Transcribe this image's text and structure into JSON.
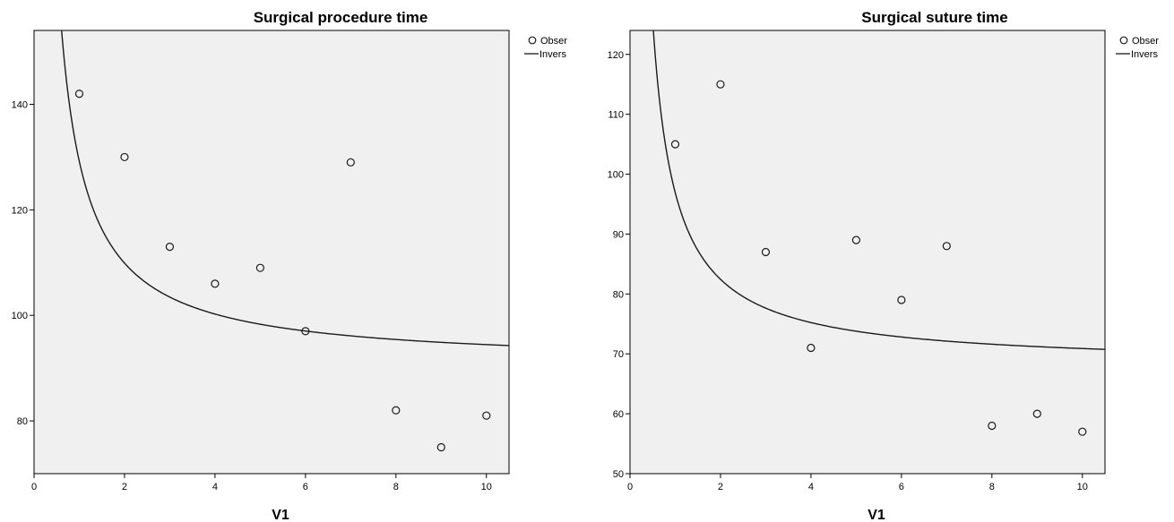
{
  "chart_data": [
    {
      "type": "scatter",
      "title": "Surgical procedure time",
      "xlabel": "V1",
      "ylabel": "",
      "xlim": [
        0,
        10.5
      ],
      "ylim": [
        70,
        154
      ],
      "x_ticks": [
        "0",
        "2",
        "4",
        "6",
        "8",
        "10"
      ],
      "y_ticks": [
        "80",
        "100",
        "120",
        "140"
      ],
      "x_tick_values": [
        0,
        2,
        4,
        6,
        8,
        10
      ],
      "y_tick_values": [
        80,
        100,
        120,
        140
      ],
      "grid": false,
      "background": "#f0f0f0",
      "legend_position": "top-right (clipped outside plot)",
      "legend": [
        "Obser",
        "Invers"
      ],
      "series": [
        {
          "name": "Obser",
          "kind": "points",
          "x": [
            1,
            2,
            3,
            4,
            5,
            6,
            7,
            8,
            9,
            10
          ],
          "y": [
            142,
            130,
            113,
            106,
            109,
            97,
            129,
            82,
            75,
            81
          ]
        },
        {
          "name": "Invers",
          "kind": "inverse-curve",
          "a": 90.6,
          "b": 38.6
        }
      ]
    },
    {
      "type": "scatter",
      "title": "Surgical suture time",
      "xlabel": "V1",
      "ylabel": "",
      "xlim": [
        0,
        10.5
      ],
      "ylim": [
        50,
        124
      ],
      "x_ticks": [
        "0",
        "2",
        "4",
        "6",
        "8",
        "10"
      ],
      "y_ticks": [
        "50",
        "60",
        "70",
        "80",
        "90",
        "100",
        "110",
        "120"
      ],
      "x_tick_values": [
        0,
        2,
        4,
        6,
        8,
        10
      ],
      "y_tick_values": [
        50,
        60,
        70,
        80,
        90,
        100,
        110,
        120
      ],
      "grid": false,
      "background": "#f0f0f0",
      "legend_position": "top-right (clipped outside plot)",
      "legend": [
        "Obser",
        "Invers"
      ],
      "series": [
        {
          "name": "Obser",
          "kind": "points",
          "x": [
            1,
            2,
            3,
            4,
            5,
            6,
            7,
            8,
            9,
            10
          ],
          "y": [
            105,
            115,
            87,
            71,
            89,
            79,
            88,
            58,
            60,
            57
          ]
        },
        {
          "name": "Invers",
          "kind": "inverse-curve",
          "a": 68.0,
          "b": 28.9
        }
      ]
    }
  ]
}
